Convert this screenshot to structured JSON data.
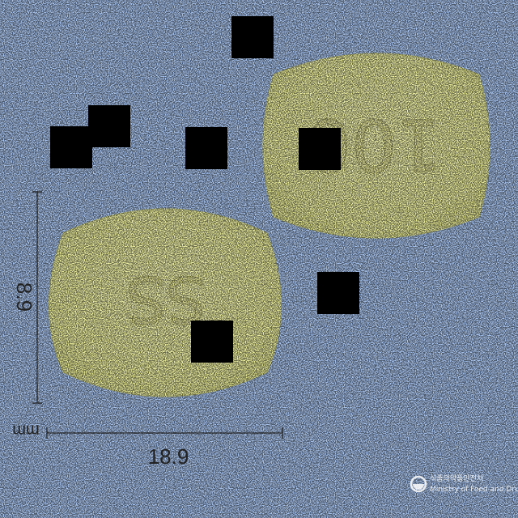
{
  "scene": {
    "background_color": "#a9c4ee",
    "tablet_color": "#eef0a8"
  },
  "tablets": {
    "back": {
      "imprint": "100",
      "face": "back"
    },
    "front": {
      "imprint": "SS",
      "face": "front"
    }
  },
  "dimensions": {
    "length_value": "18.9",
    "width_value": "8.9",
    "unit": "mm"
  },
  "watermark": {
    "line1": "식품의약품안전처",
    "line2": "Ministry of Food and Drug Safety"
  }
}
